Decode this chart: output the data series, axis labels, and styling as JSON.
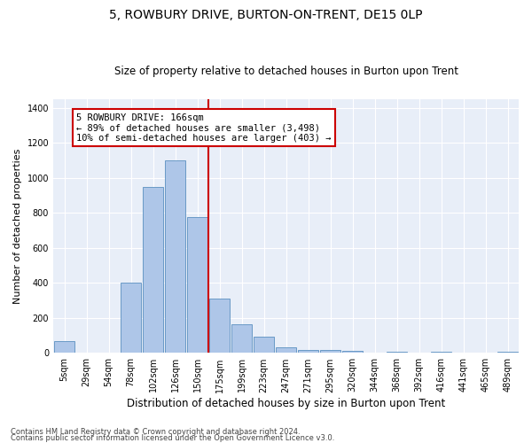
{
  "title": "5, ROWBURY DRIVE, BURTON-ON-TRENT, DE15 0LP",
  "subtitle": "Size of property relative to detached houses in Burton upon Trent",
  "xlabel": "Distribution of detached houses by size in Burton upon Trent",
  "ylabel": "Number of detached properties",
  "footer1": "Contains HM Land Registry data © Crown copyright and database right 2024.",
  "footer2": "Contains public sector information licensed under the Open Government Licence v3.0.",
  "annotation_title": "5 ROWBURY DRIVE: 166sqm",
  "annotation_line1": "← 89% of detached houses are smaller (3,498)",
  "annotation_line2": "10% of semi-detached houses are larger (403) →",
  "bar_categories": [
    "5sqm",
    "29sqm",
    "54sqm",
    "78sqm",
    "102sqm",
    "126sqm",
    "150sqm",
    "175sqm",
    "199sqm",
    "223sqm",
    "247sqm",
    "271sqm",
    "295sqm",
    "320sqm",
    "344sqm",
    "368sqm",
    "392sqm",
    "416sqm",
    "441sqm",
    "465sqm",
    "489sqm"
  ],
  "bar_values": [
    65,
    0,
    0,
    400,
    950,
    1100,
    775,
    310,
    165,
    95,
    30,
    15,
    15,
    10,
    0,
    5,
    0,
    5,
    0,
    0,
    5
  ],
  "bar_color": "#aec6e8",
  "bar_edge_color": "#5a8fc0",
  "vline_color": "#cc0000",
  "vline_index": 6.5,
  "annotation_box_color": "#cc0000",
  "ylim": [
    0,
    1450
  ],
  "yticks": [
    0,
    200,
    400,
    600,
    800,
    1000,
    1200,
    1400
  ],
  "background_color": "#e8eef8",
  "grid_color": "#ffffff",
  "figure_bg": "#ffffff"
}
